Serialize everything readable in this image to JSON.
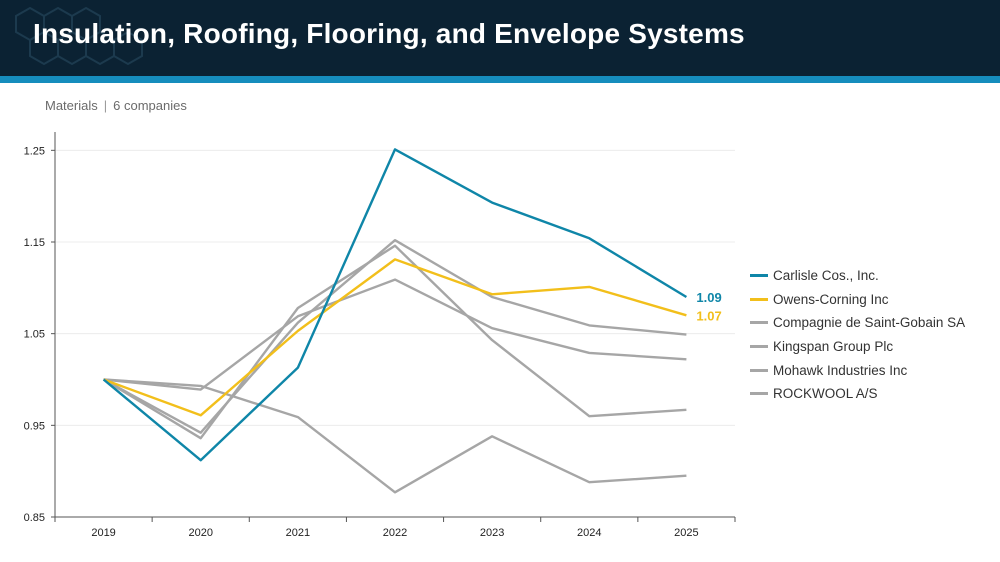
{
  "header": {
    "title": "Insulation, Roofing, Flooring, and Envelope Systems"
  },
  "subtitle": {
    "sector": "Materials",
    "count": "6 companies"
  },
  "colors": {
    "accent_blue": "#0f86a8",
    "accent_yellow": "#f2bf1b",
    "muted_gray": "#a6a6a6",
    "header_bg": "#0b2233",
    "band": "#168dbd"
  },
  "chart_data": {
    "type": "line",
    "x": [
      "2019",
      "2020",
      "2021",
      "2022",
      "2023",
      "2024",
      "2025"
    ],
    "ylim": [
      0.85,
      1.27
    ],
    "yticks": [
      "0.85",
      "0.95",
      "1.05",
      "1.15",
      "1.25"
    ],
    "ytick_values": [
      0.85,
      0.95,
      1.05,
      1.15,
      1.25
    ],
    "grid": true,
    "legend": "right",
    "series": [
      {
        "name": "Carlisle Cos., Inc.",
        "color": "#0f86a8",
        "values": [
          1.0,
          0.912,
          1.013,
          1.251,
          1.193,
          1.154,
          1.09
        ],
        "end_label": "1.09"
      },
      {
        "name": "Owens-Corning Inc",
        "color": "#f2bf1b",
        "values": [
          1.0,
          0.961,
          1.053,
          1.131,
          1.093,
          1.101,
          1.07
        ],
        "end_label": "1.07"
      },
      {
        "name": "Compagnie de Saint-Gobain SA",
        "color": "#a6a6a6",
        "values": [
          1.0,
          0.989,
          1.069,
          1.109,
          1.056,
          1.029,
          1.022
        ]
      },
      {
        "name": "Kingspan Group Plc",
        "color": "#a6a6a6",
        "values": [
          1.0,
          0.936,
          1.078,
          1.146,
          1.043,
          0.96,
          0.967
        ]
      },
      {
        "name": "Mohawk Industries Inc",
        "color": "#a6a6a6",
        "values": [
          1.0,
          0.993,
          0.959,
          0.877,
          0.938,
          0.888,
          0.895
        ]
      },
      {
        "name": "ROCKWOOL A/S",
        "color": "#a6a6a6",
        "values": [
          1.0,
          0.942,
          1.062,
          1.152,
          1.09,
          1.059,
          1.049
        ]
      }
    ]
  }
}
